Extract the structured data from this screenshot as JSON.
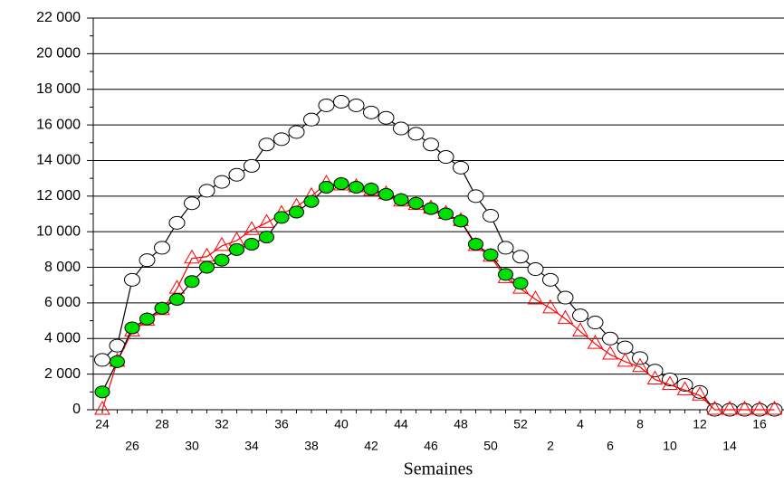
{
  "chart_data": {
    "type": "line",
    "x_label": "Semaines",
    "categories": [
      "24",
      null,
      "26",
      null,
      "28",
      null,
      "30",
      null,
      "32",
      null,
      "34",
      null,
      "36",
      null,
      "38",
      null,
      "40",
      null,
      "42",
      null,
      "44",
      null,
      "46",
      null,
      "48",
      null,
      "50",
      null,
      "52",
      null,
      "2",
      null,
      "4",
      null,
      "6",
      null,
      "8",
      null,
      "10",
      null,
      "12",
      null,
      "14",
      null,
      "16",
      null
    ],
    "series": [
      {
        "color": "#000000",
        "line_color": "#000000",
        "marker": "open-circle",
        "values": [
          2800,
          3600,
          7300,
          8400,
          9100,
          10500,
          11600,
          12300,
          12800,
          13200,
          13700,
          14900,
          15200,
          15600,
          16300,
          17100,
          17300,
          17100,
          16700,
          16400,
          15800,
          15500,
          14900,
          14200,
          13600,
          12000,
          10900,
          9100,
          8600,
          7900,
          7300,
          6300,
          5300,
          4900,
          4000,
          3500,
          2900,
          2200,
          1700,
          1400,
          1000,
          0,
          0,
          0,
          0,
          0
        ]
      },
      {
        "color": "#ff0000",
        "line_color": "#ff0000",
        "marker": "open-triangle",
        "values": [
          0,
          2700,
          4400,
          5000,
          5600,
          6800,
          8500,
          8600,
          9200,
          9500,
          10100,
          10500,
          11000,
          11400,
          12000,
          12700,
          12600,
          12500,
          12300,
          12100,
          11700,
          11500,
          11300,
          11000,
          10600,
          9200,
          8600,
          7400,
          6800,
          6200,
          5700,
          5100,
          4400,
          3700,
          3100,
          2700,
          2400,
          1700,
          1400,
          1100,
          800,
          0,
          0,
          0,
          0,
          0
        ]
      },
      {
        "color": "#00e000",
        "line_color": "#000000",
        "marker": "filled-circle",
        "values": [
          1000,
          2700,
          4600,
          5100,
          5700,
          6200,
          7200,
          8000,
          8400,
          9000,
          9300,
          9700,
          10800,
          11100,
          11700,
          12500,
          12700,
          12500,
          12400,
          12100,
          11800,
          11600,
          11300,
          11000,
          10600,
          9300,
          8700,
          7600,
          7100,
          null,
          null,
          null,
          null,
          null,
          null,
          null,
          null,
          null,
          null,
          null,
          null,
          null,
          null,
          null,
          null,
          null
        ]
      }
    ],
    "ylim": [
      0,
      22000
    ],
    "yticks": [
      {
        "value": 0,
        "label": "0"
      },
      {
        "value": 2000,
        "label": "2 000"
      },
      {
        "value": 4000,
        "label": "4 000"
      },
      {
        "value": 6000,
        "label": "6 000"
      },
      {
        "value": 8000,
        "label": "8 000"
      },
      {
        "value": 10000,
        "label": "10 000"
      },
      {
        "value": 12000,
        "label": "12 000"
      },
      {
        "value": 14000,
        "label": "14 000"
      },
      {
        "value": 16000,
        "label": "16 000"
      },
      {
        "value": 18000,
        "label": "18 000"
      },
      {
        "value": 20000,
        "label": "20 000"
      },
      {
        "value": 22000,
        "label": "22 000"
      }
    ],
    "grid": true
  }
}
